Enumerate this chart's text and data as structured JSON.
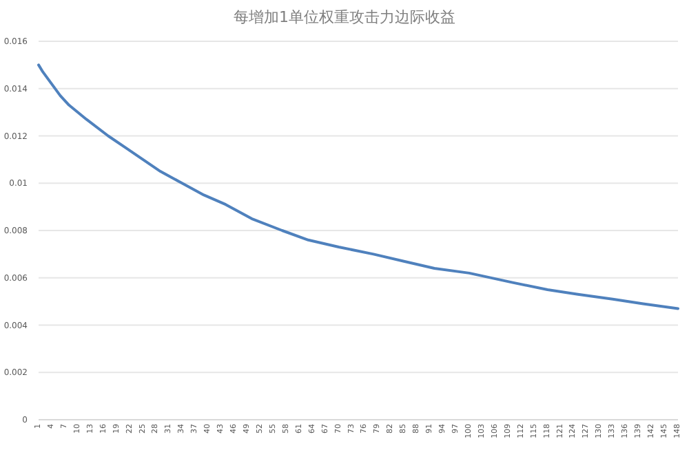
{
  "chart_data": {
    "type": "line",
    "title": "每增加1单位权重攻击力边际收益",
    "x": [
      1,
      2,
      4,
      6,
      8,
      12,
      17,
      21,
      25,
      29,
      34,
      39,
      44,
      50,
      57,
      63,
      70,
      78,
      85,
      92,
      100,
      110,
      118,
      125,
      133,
      140,
      148
    ],
    "series": [
      {
        "color": "#4f81bd",
        "values": [
          0.015,
          0.0147,
          0.0142,
          0.0137,
          0.0133,
          0.0127,
          0.012,
          0.0115,
          0.011,
          0.0105,
          0.01,
          0.0095,
          0.0091,
          0.0085,
          0.008,
          0.0076,
          0.0073,
          0.007,
          0.0067,
          0.0064,
          0.0062,
          0.0058,
          0.0055,
          0.0053,
          0.0051,
          0.0049,
          0.0047
        ]
      }
    ],
    "xlim": [
      1,
      148
    ],
    "xticks": [
      1,
      4,
      7,
      10,
      13,
      16,
      19,
      22,
      25,
      28,
      31,
      34,
      37,
      40,
      43,
      46,
      49,
      52,
      55,
      58,
      61,
      64,
      67,
      70,
      73,
      76,
      79,
      82,
      85,
      88,
      91,
      94,
      97,
      100,
      103,
      106,
      109,
      112,
      115,
      118,
      121,
      124,
      127,
      130,
      133,
      136,
      139,
      142,
      145,
      148
    ],
    "ylim": [
      0,
      0.016
    ],
    "yticks": [
      0,
      0.002,
      0.004,
      0.006,
      0.008,
      0.01,
      0.012,
      0.014,
      0.016
    ],
    "grid": "y",
    "marker": "none",
    "line_style": "solid"
  }
}
